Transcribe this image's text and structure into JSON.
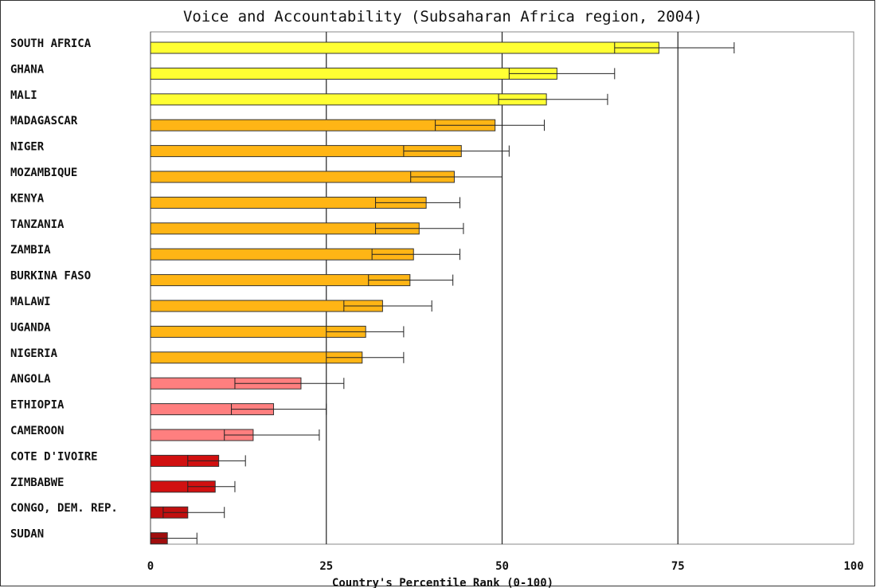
{
  "chart_data": {
    "type": "bar",
    "orientation": "horizontal",
    "title": "Voice and Accountability (Subsaharan Africa region, 2004)",
    "xlabel": "Country's Percentile Rank (0-100)",
    "ylabel": "",
    "xlim": [
      0,
      100
    ],
    "xticks": [
      0,
      25,
      50,
      75,
      100
    ],
    "grid": "vertical lines at 25, 50, 75",
    "legend": "none",
    "categories": [
      "SOUTH AFRICA",
      "GHANA",
      "MALI",
      "MADAGASCAR",
      "NIGER",
      "MOZAMBIQUE",
      "KENYA",
      "TANZANIA",
      "ZAMBIA",
      "BURKINA FASO",
      "MALAWI",
      "UGANDA",
      "NIGERIA",
      "ANGOLA",
      "ETHIOPIA",
      "CAMEROON",
      "COTE D'IVOIRE",
      "ZIMBABWE",
      "CONGO, DEM. REP.",
      "SUDAN"
    ],
    "values": [
      72.3,
      57.8,
      56.3,
      49.0,
      44.2,
      43.2,
      39.2,
      38.2,
      37.4,
      36.9,
      33.0,
      30.6,
      30.1,
      21.4,
      17.5,
      14.6,
      9.7,
      9.2,
      5.3,
      2.4
    ],
    "error_low": [
      66.0,
      51.0,
      49.5,
      40.5,
      36.0,
      37.0,
      32.0,
      32.0,
      31.5,
      31.0,
      27.5,
      25.0,
      25.0,
      12.0,
      11.5,
      10.5,
      5.3,
      5.3,
      1.8,
      0.0
    ],
    "error_high": [
      83.0,
      66.0,
      65.0,
      56.0,
      51.0,
      50.0,
      44.0,
      44.5,
      44.0,
      43.0,
      40.0,
      36.0,
      36.0,
      27.5,
      25.0,
      24.0,
      13.5,
      12.0,
      10.5,
      6.6
    ],
    "bar_colors": [
      "#ffff33",
      "#ffff33",
      "#ffff33",
      "#ffb515",
      "#ffb515",
      "#ffb515",
      "#ffb515",
      "#ffb515",
      "#ffb515",
      "#ffb515",
      "#ffb515",
      "#ffb515",
      "#ffb515",
      "#ff7f7f",
      "#ff7f7f",
      "#ff7f7f",
      "#d11010",
      "#d11010",
      "#c10f0f",
      "#a00d0d"
    ]
  }
}
